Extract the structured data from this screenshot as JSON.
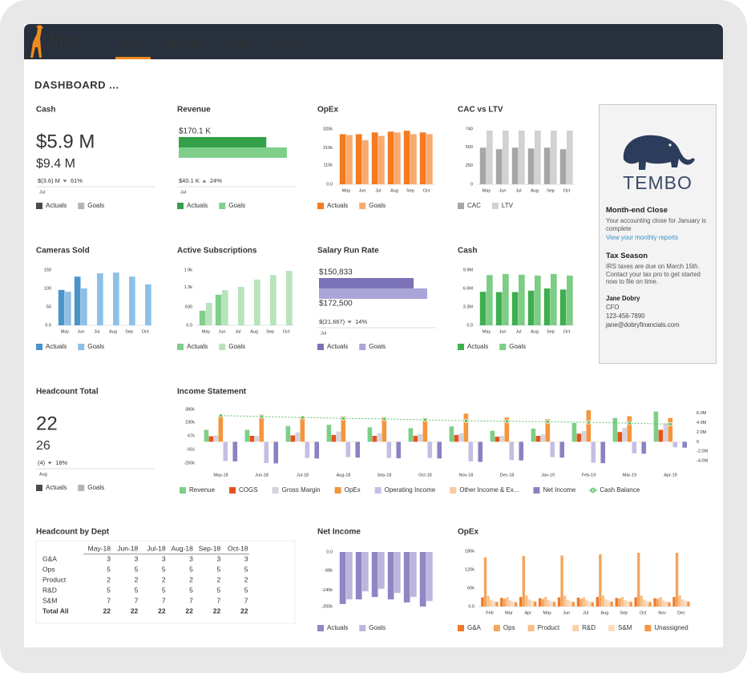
{
  "nav": {
    "logo": "Jirav",
    "items": [
      "Home",
      "Reports",
      "Plans",
      "Actuals"
    ],
    "active": 0
  },
  "page_title": "DASHBOARD ...",
  "widgets": [
    {
      "title": "Cash",
      "actual": "$5.9 M",
      "goal": "$9.4 M",
      "variance": "$(3.6) M",
      "direction": "down",
      "percent": "61%",
      "period": "Jul",
      "legend": [
        {
          "name": "Actuals",
          "color": "#4a4a4a"
        },
        {
          "name": "Goals",
          "color": "#b5b5b5"
        }
      ]
    },
    {
      "title": "Revenue",
      "actual_label": "$170.1 K",
      "variance": "$40.1 K",
      "direction": "up",
      "percent": "24%",
      "period": "Jul",
      "chart_data": {
        "type": "bullet",
        "series": [
          {
            "name": "Actuals",
            "color": "#34a04a",
            "value": 170.1
          },
          {
            "name": "Goals",
            "color": "#7fcf8b",
            "value": 210.2
          }
        ]
      }
    },
    {
      "title": "OpEx",
      "chart_data": {
        "type": "bar",
        "categories": [
          "May",
          "Jun",
          "Jul",
          "Aug",
          "Sep",
          "Oct"
        ],
        "series": [
          {
            "name": "Actuals",
            "color": "#f47b20",
            "values": [
              290000,
              290000,
              300000,
              305000,
              310000,
              300000
            ]
          },
          {
            "name": "Goals",
            "color": "#f9aa6e",
            "values": [
              285000,
              255000,
              280000,
              300000,
              290000,
              290000
            ]
          }
        ],
        "ylim": [
          0,
          320000
        ],
        "yticks": [
          {
            "value": 0,
            "label": "0.0"
          },
          {
            "value": 110000,
            "label": "110k"
          },
          {
            "value": 210000,
            "label": "210k"
          },
          {
            "value": 320000,
            "label": "320k"
          }
        ]
      }
    },
    {
      "title": "CAC vs LTV",
      "chart_data": {
        "type": "bar",
        "categories": [
          "May",
          "Jun",
          "Jul",
          "Aug",
          "Sep",
          "Oct"
        ],
        "series": [
          {
            "name": "CAC",
            "color": "#a6a6a6",
            "values": [
              490,
              470,
              490,
              480,
              490,
              470
            ]
          },
          {
            "name": "LTV",
            "color": "#d2d2d2",
            "values": [
              720,
              720,
              720,
              720,
              720,
              720
            ]
          }
        ],
        "ylim": [
          0,
          740
        ],
        "yticks": [
          0,
          250,
          500,
          740
        ]
      }
    },
    {
      "title": "Cameras Sold",
      "chart_data": {
        "type": "bar",
        "categories": [
          "May",
          "Jun",
          "Jul",
          "Aug",
          "Sep",
          "Oct"
        ],
        "series": [
          {
            "name": "Actuals",
            "color": "#4c94c8",
            "values": [
              96,
              132,
              null,
              null,
              null,
              null
            ]
          },
          {
            "name": "Goals",
            "color": "#8dc0e6",
            "values": [
              91,
              100,
              141,
              143,
              132,
              111
            ]
          }
        ],
        "ylim": [
          0,
          150
        ],
        "yticks": [
          {
            "value": 0,
            "label": "0.0"
          },
          50,
          100,
          150
        ]
      }
    },
    {
      "title": "Active Subscriptions",
      "chart_data": {
        "type": "bar",
        "categories": [
          "May",
          "Jun",
          "Jul",
          "Aug",
          "Sep",
          "Oct"
        ],
        "series": [
          {
            "name": "Actuals",
            "color": "#7fcf8a",
            "values": [
              500,
              1050,
              null,
              null,
              null,
              null
            ]
          },
          {
            "name": "Goals",
            "color": "#b7e3bd",
            "values": [
              770,
              1210,
              1320,
              1570,
              1730,
              1870
            ]
          }
        ],
        "ylim": [
          0,
          1900
        ],
        "yticks": [
          {
            "value": 0,
            "label": "0.0"
          },
          630,
          {
            "value": 1300,
            "label": "1.3k"
          },
          {
            "value": 1900,
            "label": "1.9k"
          }
        ]
      }
    },
    {
      "title": "Salary Run Rate",
      "actual_label": "$150,833",
      "goal_label": "$172,500",
      "variance": "$(21,667)",
      "direction": "down",
      "percent": "14%",
      "period": "Jul",
      "chart_data": {
        "type": "bullet",
        "series": [
          {
            "name": "Actuals",
            "color": "#7b72b7",
            "value": 150833
          },
          {
            "name": "Goals",
            "color": "#aaa5d8",
            "value": 172500
          }
        ]
      }
    },
    {
      "title": "Cash",
      "chart_data": {
        "type": "bar",
        "categories": [
          "May",
          "Jun",
          "Jul",
          "Aug",
          "Sep",
          "Oct"
        ],
        "series": [
          {
            "name": "Actuals",
            "color": "#3fae4f",
            "values": [
              6000000,
              5950000,
              5950000,
              6200000,
              6600000,
              6400000
            ]
          },
          {
            "name": "Goals",
            "color": "#7ccd86",
            "values": [
              9000000,
              9200000,
              9050000,
              8900000,
              9200000,
              8900000
            ]
          }
        ],
        "ylim": [
          0,
          9900000
        ],
        "yticks": [
          {
            "value": 0,
            "label": "0.0"
          },
          {
            "value": 3300000,
            "label": "3.3M"
          },
          {
            "value": 6600000,
            "label": "6.6M"
          },
          {
            "value": 9900000,
            "label": "9.9M"
          }
        ]
      }
    },
    {
      "title": "Headcount Total",
      "actual": "22",
      "goal": "26",
      "variance": "(4)",
      "direction": "down",
      "percent": "18%",
      "period": "Aug",
      "legend": [
        {
          "name": "Actuals",
          "color": "#4a4a4a"
        },
        {
          "name": "Goals",
          "color": "#b5b5b5"
        }
      ]
    },
    {
      "title": "Income Statement",
      "chart_data": {
        "type": "bar",
        "categories": [
          "May-18",
          "Jun-18",
          "Jul-18",
          "Aug-18",
          "Sep-18",
          "Oct-18",
          "Nov-18",
          "Dec-18",
          "Jan-19",
          "Feb-19",
          "Mar-19",
          "Apr-19"
        ],
        "series": [
          {
            "name": "Revenue",
            "color": "#7dcf86",
            "values": [
              140000,
              140000,
              185000,
              200000,
              170000,
              160000,
              180000,
              130000,
              155000,
              220000,
              280000,
              355000
            ]
          },
          {
            "name": "COGS",
            "color": "#e2541c",
            "values": [
              65000,
              70000,
              75000,
              80000,
              70000,
              70000,
              80000,
              60000,
              70000,
              95000,
              115000,
              140000
            ]
          },
          {
            "name": "Gross Margin",
            "color": "#d4d3de",
            "values": [
              75000,
              70000,
              110000,
              120000,
              100000,
              90000,
              100000,
              70000,
              85000,
              125000,
              165000,
              215000
            ]
          },
          {
            "name": "OpEx",
            "color": "#f5953c",
            "values": [
              300000,
              320000,
              300000,
              300000,
              290000,
              280000,
              330000,
              285000,
              265000,
              370000,
              300000,
              280000
            ]
          },
          {
            "name": "Operating Income",
            "color": "#c3bfe2",
            "values": [
              -225000,
              -250000,
              -190000,
              -180000,
              -190000,
              -190000,
              -230000,
              -215000,
              -180000,
              -245000,
              -135000,
              -65000
            ]
          },
          {
            "name": "Other Income & Ex...",
            "color": "#f9c9a0",
            "values": [
              -5000,
              -4000,
              -6000,
              -5000,
              -4000,
              -5000,
              -6000,
              -4000,
              -5000,
              -6000,
              -5000,
              -4000
            ]
          },
          {
            "name": "Net Income",
            "color": "#8a82c2",
            "values": [
              -230000,
              -254000,
              -196000,
              -185000,
              -194000,
              -195000,
              -236000,
              -219000,
              -185000,
              -251000,
              -140000,
              -69000
            ]
          },
          {
            "name": "Cash Balance",
            "color": "#5cbf6b",
            "type": "line",
            "axis": "y2",
            "values": [
              5500000,
              5300000,
              5100000,
              4900000,
              4800000,
              4600000,
              4400000,
              4300000,
              4200000,
              4100000,
              3900000,
              3700000
            ]
          }
        ],
        "ylim": [
          -250000,
          380000
        ],
        "yticks": [
          {
            "value": 380000,
            "label": "380k"
          },
          {
            "value": 230000,
            "label": "230k"
          },
          {
            "value": 67000,
            "label": "67k"
          },
          {
            "value": -91000,
            "label": "-91k"
          },
          {
            "value": -250000,
            "label": "-250k"
          }
        ],
        "y2lim": [
          -4500000,
          6800000
        ],
        "y2ticks": [
          {
            "value": 6000000,
            "label": "6.0M"
          },
          {
            "value": 4000000,
            "label": "4.0M"
          },
          {
            "value": 2000000,
            "label": "2.0M"
          },
          0,
          {
            "value": -2000000,
            "label": "-2.0M"
          },
          {
            "value": -4000000,
            "label": "-4.0M"
          }
        ]
      }
    },
    {
      "title": "Headcount by Dept",
      "table": {
        "columns": [
          "May-18",
          "Jun-18",
          "Jul-18",
          "Aug-18",
          "Sep-18",
          "Oct-18"
        ],
        "rows": [
          [
            "G&A",
            3,
            3,
            3,
            3,
            3,
            3
          ],
          [
            "Ops",
            5,
            5,
            5,
            5,
            5,
            5
          ],
          [
            "Product",
            2,
            2,
            2,
            2,
            2,
            2
          ],
          [
            "R&D",
            5,
            5,
            5,
            5,
            5,
            5
          ],
          [
            "S&M",
            7,
            7,
            7,
            7,
            7,
            7
          ],
          [
            "Total All",
            22,
            22,
            22,
            22,
            22,
            22
          ]
        ]
      }
    },
    {
      "title": "Net Income",
      "chart_data": {
        "type": "bar",
        "series": [
          {
            "name": "Actuals",
            "color": "#8f86c4",
            "values": [
              -191000,
              -174000,
              -165000,
              -174000,
              -185000,
              -200000
            ]
          },
          {
            "name": "Goals",
            "color": "#bcb6df",
            "values": [
              -174000,
              -144000,
              -135000,
              -150000,
              -165000,
              -180000
            ]
          }
        ],
        "ylim": [
          -200000,
          0
        ],
        "yticks": [
          {
            "value": 0,
            "label": "0.0"
          },
          {
            "value": -68000,
            "label": "-68k"
          },
          {
            "value": -140000,
            "label": "-140k"
          },
          {
            "value": -200000,
            "label": "-200k"
          }
        ]
      }
    },
    {
      "title": "OpEx",
      "chart_data": {
        "type": "bar",
        "categories": [
          "Feb",
          "Mar",
          "Apr",
          "May",
          "Jun",
          "Jul",
          "Aug",
          "Sep",
          "Oct",
          "Nov",
          "Dec"
        ],
        "series": [
          {
            "name": "G&A",
            "color": "#f0782a",
            "values": [
              30000,
              28000,
              31000,
              27000,
              30000,
              29000,
              31000,
              28000,
              30000,
              27000,
              31000
            ]
          },
          {
            "name": "Ops",
            "color": "#f6a35c",
            "values": [
              160000,
              25000,
              165000,
              24000,
              166000,
              25000,
              170000,
              26000,
              175000,
              25000,
              175000
            ]
          },
          {
            "name": "Product",
            "color": "#f8bf86",
            "values": [
              35000,
              30000,
              36000,
              31000,
              35000,
              30000,
              36000,
              31000,
              35000,
              30000,
              36000
            ]
          },
          {
            "name": "R&D",
            "color": "#fbd1ab",
            "values": [
              22000,
              20000,
              23000,
              21000,
              22000,
              20000,
              23000,
              21000,
              22000,
              20000,
              23000
            ]
          },
          {
            "name": "S&M",
            "color": "#fcdcc0",
            "values": [
              18000,
              17000,
              19000,
              18000,
              18000,
              17000,
              19000,
              18000,
              18000,
              17000,
              19000
            ]
          },
          {
            "name": "Unassigned",
            "color": "#f5964a",
            "values": [
              15000,
              14000,
              16000,
              15000,
              15000,
              14000,
              16000,
              15000,
              15000,
              14000,
              16000
            ]
          }
        ],
        "ylim": [
          0,
          180000
        ],
        "yticks": [
          {
            "value": 0,
            "label": "0.0"
          },
          {
            "value": 60000,
            "label": "60k"
          },
          {
            "value": 120000,
            "label": "120k"
          },
          {
            "value": 180000,
            "label": "180k"
          }
        ]
      }
    }
  ],
  "sidebar": {
    "brand": "TEMBO",
    "sections": [
      {
        "title": "Month-end Close",
        "text": "Your accounting close for January is complete",
        "link": "View your monthly reports"
      },
      {
        "title": "Tax Season",
        "text": "IRS taxes are due on March 15th. Contact your tax pro to get started now to file on time."
      }
    ],
    "contact": {
      "name": "Jane Dobry",
      "role": "CFO",
      "phone": "123-456-7890",
      "email": "jane@dobryfinancials.com"
    }
  }
}
